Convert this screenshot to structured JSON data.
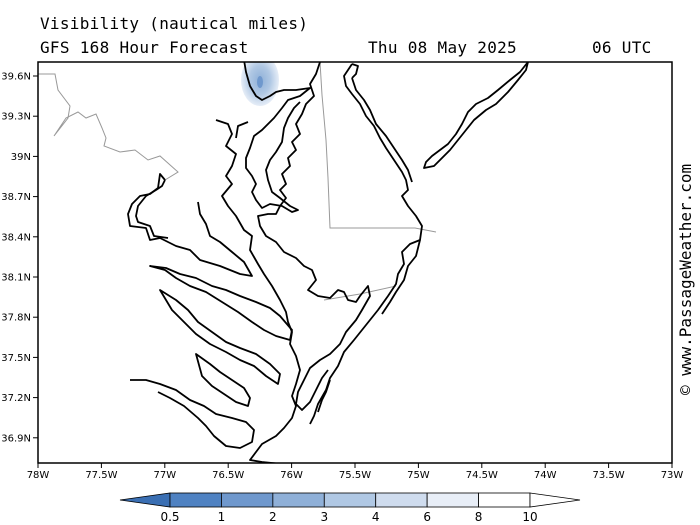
{
  "header": {
    "title_line1": "Visibility (nautical miles)",
    "title_line2": "GFS 168 Hour Forecast",
    "date": "Thu 08 May 2025",
    "time": "06 UTC"
  },
  "map": {
    "lat_ticks": [
      "39.6N",
      "39.3N",
      "39N",
      "38.7N",
      "38.4N",
      "38.1N",
      "37.8N",
      "37.5N",
      "37.2N",
      "36.9N"
    ],
    "lon_ticks": [
      "78W",
      "77.5W",
      "77W",
      "76.5W",
      "76W",
      "75.5W",
      "75W",
      "74.5W",
      "74W",
      "73.5W",
      "73W"
    ],
    "colors": {
      "land_border": "#999999",
      "coast": "#000000",
      "low_vis_light": "#c7d7ec",
      "low_vis_dark": "#8fb0d8"
    }
  },
  "watermark": "© www.PassageWeather.com",
  "colorbar": {
    "labels": [
      "0.5",
      "1",
      "2",
      "3",
      "4",
      "6",
      "8",
      "10"
    ],
    "colors": [
      "#3a6fb3",
      "#4f82c2",
      "#6f98cd",
      "#8fb0d8",
      "#b0c8e4",
      "#cfdcee",
      "#e8eef7",
      "#ffffff",
      "#ffffff"
    ]
  }
}
